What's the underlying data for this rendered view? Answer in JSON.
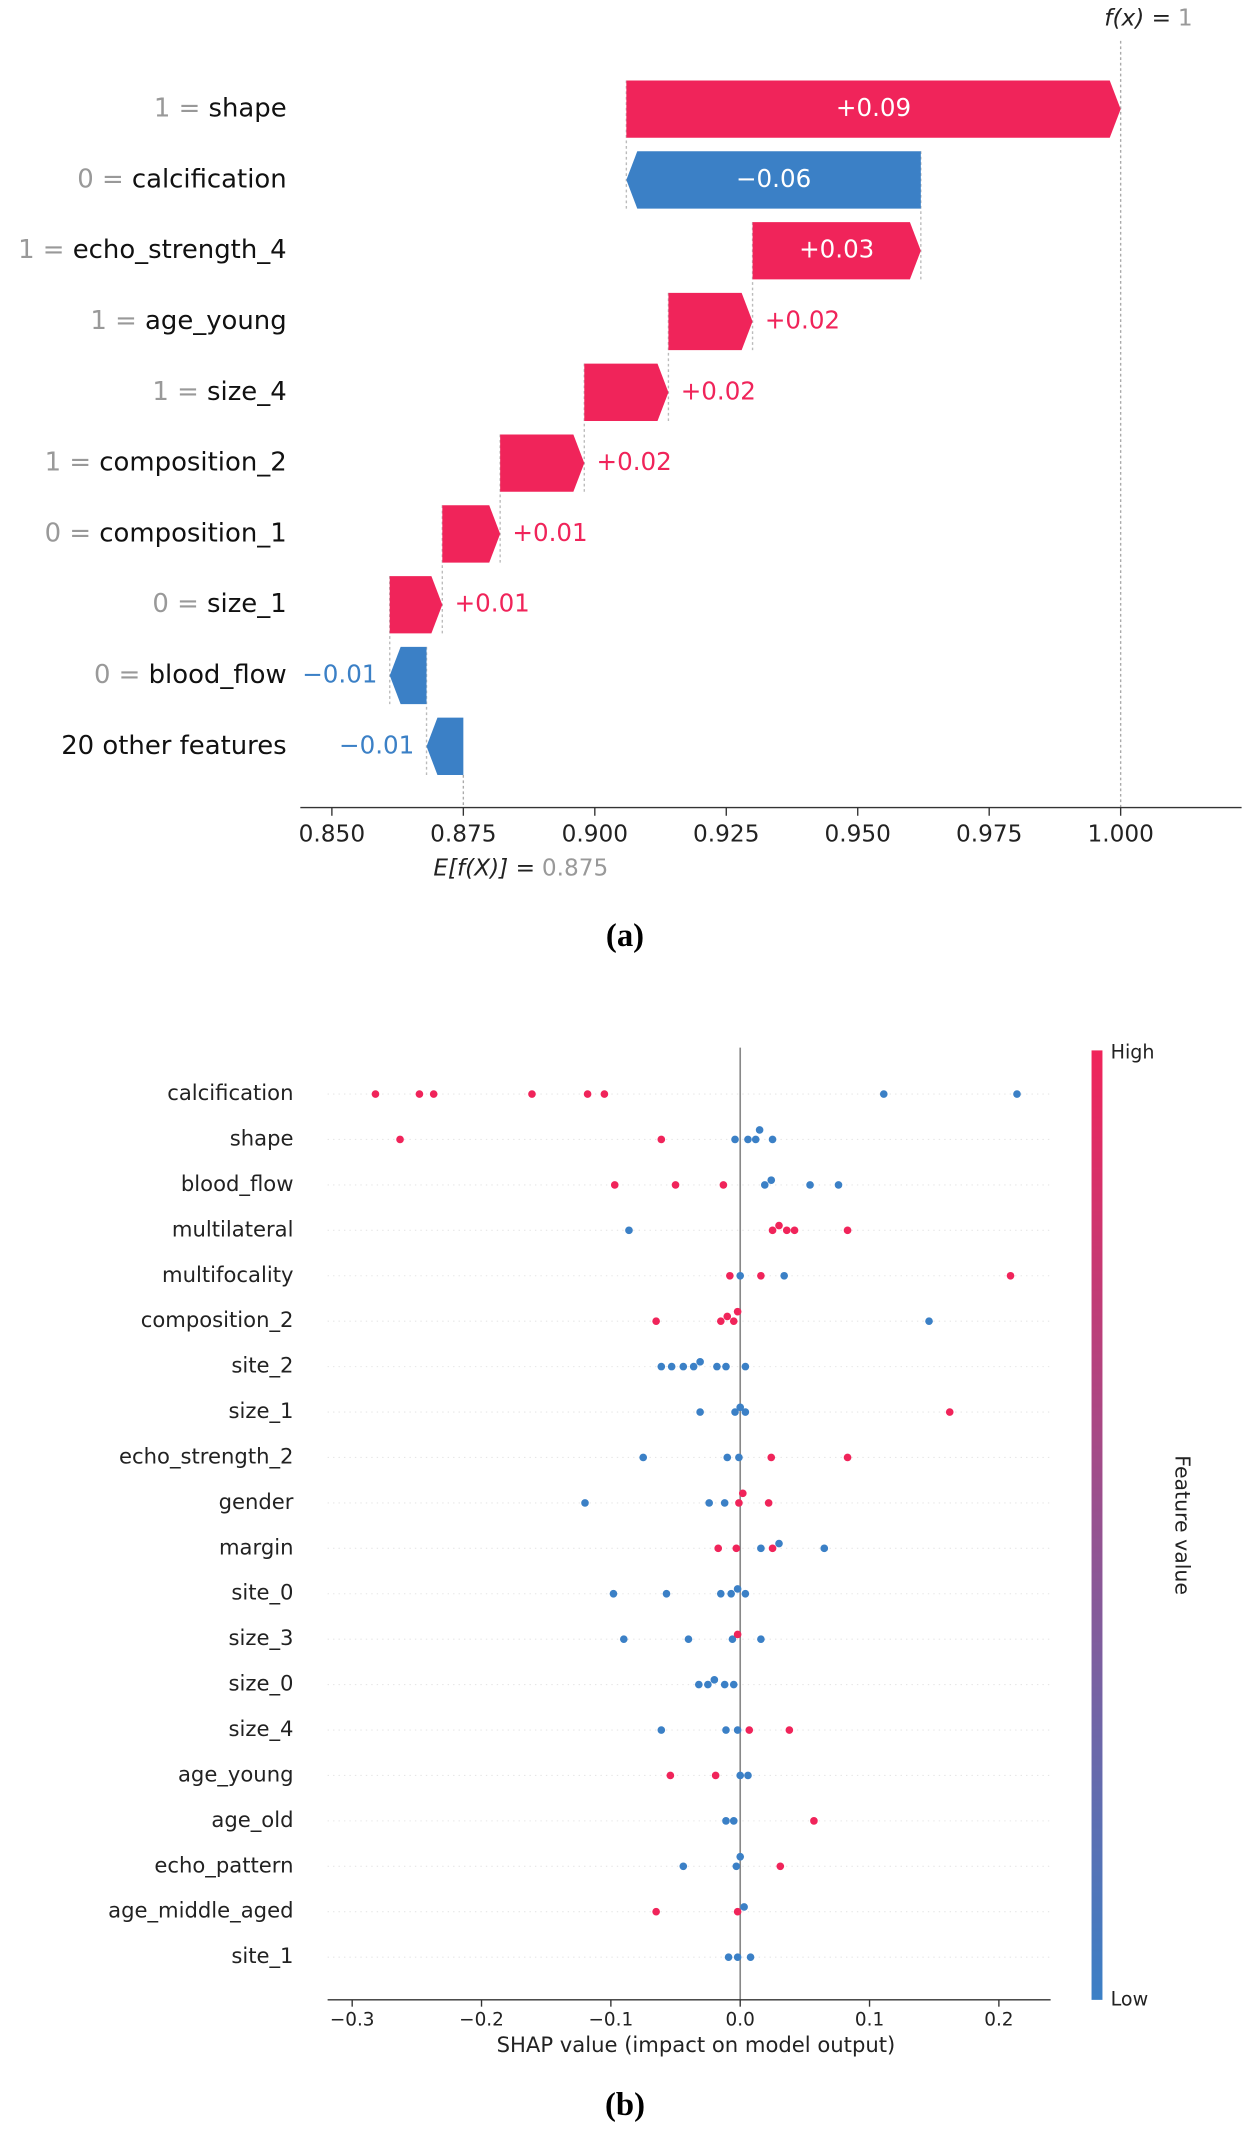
{
  "chart_data": [
    {
      "type": "waterfall",
      "caption": "(a)",
      "categories": [
        "shape",
        "calcification",
        "echo_strength_4",
        "age_young",
        "size_4",
        "composition_2",
        "composition_1",
        "size_1",
        "blood_flow",
        "20 other features"
      ],
      "feature_values": [
        "1 =",
        "0 =",
        "1 =",
        "1 =",
        "1 =",
        "1 =",
        "0 =",
        "0 =",
        "0 =",
        null
      ],
      "values": [
        0.094,
        -0.056,
        0.032,
        0.016,
        0.016,
        0.016,
        0.011,
        0.01,
        -0.007,
        -0.007
      ],
      "value_labels": [
        "+0.09",
        "−0.06",
        "+0.03",
        "+0.02",
        "+0.02",
        "+0.02",
        "+0.01",
        "+0.01",
        "−0.01",
        "−0.01"
      ],
      "base_label": "E[f(X)] =",
      "base_value": 0.875,
      "final_label": "f(x) =",
      "final_value": 1,
      "xlim": [
        0.844,
        1.023
      ],
      "xticks": [
        {
          "value": 0.85,
          "label": "0.850"
        },
        {
          "value": 0.875,
          "label": "0.875"
        },
        {
          "value": 0.9,
          "label": "0.900"
        },
        {
          "value": 0.925,
          "label": "0.925"
        },
        {
          "value": 0.95,
          "label": "0.950"
        },
        {
          "value": 0.975,
          "label": "0.975"
        },
        {
          "value": 1.0,
          "label": "1.000"
        }
      ],
      "colors": {
        "positive": "#f0245a",
        "negative": "#3b80c6"
      }
    },
    {
      "type": "beeswarm",
      "caption": "(b)",
      "xlabel": "SHAP value (impact on model output)",
      "categories": [
        "calcification",
        "shape",
        "blood_flow",
        "multilateral",
        "multifocality",
        "composition_2",
        "site_2",
        "size_1",
        "echo_strength_2",
        "gender",
        "margin",
        "site_0",
        "size_3",
        "size_0",
        "size_4",
        "age_young",
        "age_old",
        "echo_pattern",
        "age_middle_aged",
        "site_1"
      ],
      "shap_values": [
        [
          -0.282,
          -0.248,
          -0.237,
          -0.161,
          -0.118,
          -0.105,
          0.111,
          0.214
        ],
        [
          -0.263,
          -0.061,
          -0.004,
          0.006,
          0.012,
          0.015,
          0.025
        ],
        [
          -0.097,
          -0.05,
          -0.013,
          0.019,
          0.024,
          0.054,
          0.076
        ],
        [
          -0.086,
          0.025,
          0.03,
          0.036,
          0.042,
          0.083
        ],
        [
          -0.008,
          0.016,
          0.209,
          0.0,
          0.034
        ],
        [
          -0.065,
          -0.015,
          -0.01,
          -0.005,
          -0.002,
          0.146
        ],
        [
          -0.061,
          -0.053,
          -0.044,
          -0.036,
          -0.031,
          -0.018,
          -0.011,
          0.004
        ],
        [
          -0.031,
          -0.004,
          0.0,
          0.004,
          0.162
        ],
        [
          -0.075,
          -0.01,
          -0.001,
          0.024,
          0.083
        ],
        [
          -0.12,
          -0.024,
          -0.012,
          -0.001,
          0.002,
          0.022
        ],
        [
          -0.017,
          -0.003,
          0.025,
          0.016,
          0.03,
          0.065
        ],
        [
          -0.098,
          -0.057,
          -0.015,
          -0.007,
          -0.002,
          0.004
        ],
        [
          -0.09,
          -0.04,
          -0.006,
          0.016,
          -0.002
        ],
        [
          -0.032,
          -0.025,
          -0.02,
          -0.012,
          -0.005
        ],
        [
          -0.061,
          -0.011,
          -0.002,
          0.007,
          0.038
        ],
        [
          -0.054,
          -0.019,
          0.0,
          0.006
        ],
        [
          -0.011,
          -0.005,
          0.057
        ],
        [
          -0.044,
          -0.003,
          0.0,
          0.031
        ],
        [
          -0.065,
          -0.002,
          0.003
        ],
        [
          -0.009,
          -0.002,
          0.008
        ]
      ],
      "feature_values": [
        [
          1,
          1,
          1,
          1,
          1,
          1,
          0,
          0
        ],
        [
          1,
          1,
          0,
          0,
          0,
          0,
          0
        ],
        [
          1,
          1,
          1,
          0,
          0,
          0,
          0
        ],
        [
          0,
          1,
          1,
          1,
          1,
          1
        ],
        [
          1,
          1,
          1,
          0,
          0
        ],
        [
          1,
          1,
          1,
          1,
          1,
          0
        ],
        [
          0,
          0,
          0,
          0,
          0,
          0,
          0,
          0
        ],
        [
          0,
          0,
          0,
          0,
          1
        ],
        [
          0,
          0,
          0,
          1,
          1
        ],
        [
          0,
          0,
          0,
          1,
          1,
          1
        ],
        [
          1,
          1,
          1,
          0,
          0,
          0
        ],
        [
          0,
          0,
          0,
          0,
          0,
          0
        ],
        [
          0,
          0,
          0,
          0,
          1
        ],
        [
          0,
          0,
          0,
          0,
          0
        ],
        [
          0,
          0,
          0,
          1,
          1
        ],
        [
          1,
          1,
          0,
          0
        ],
        [
          0,
          0,
          1
        ],
        [
          0,
          0,
          0,
          1
        ],
        [
          1,
          1,
          0
        ],
        [
          0,
          0,
          0
        ]
      ],
      "xlim": [
        -0.319,
        0.24
      ],
      "xticks": [
        {
          "value": -0.3,
          "label": "−0.3"
        },
        {
          "value": -0.2,
          "label": "−0.2"
        },
        {
          "value": -0.1,
          "label": "−0.1"
        },
        {
          "value": 0,
          "label": "0.0"
        },
        0.1,
        0.2
      ],
      "colorbar": {
        "label": "Feature value",
        "high": "High",
        "low": "Low",
        "colors": [
          "#3b80c6",
          "#f0245a"
        ]
      }
    }
  ]
}
